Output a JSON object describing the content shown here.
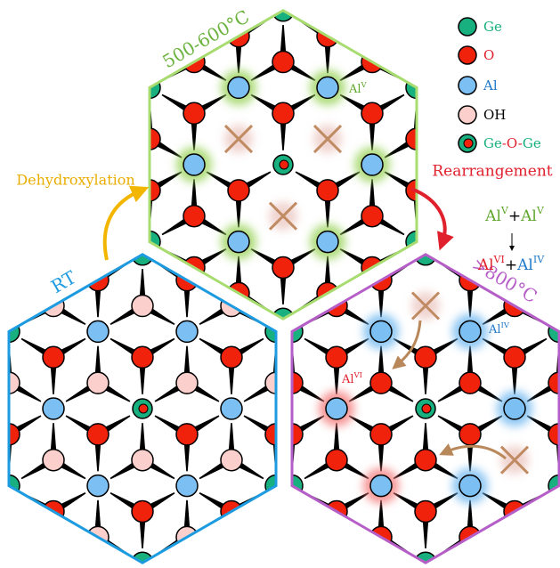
{
  "panels": {
    "rt": "RT",
    "mid": "500-600°C",
    "high": ">800°C"
  },
  "steps": {
    "dehydroxylation": "Dehydroxylation",
    "rearrangement": "Rearrangement"
  },
  "legend": {
    "ge": "Ge",
    "o": "O",
    "al": "Al",
    "oh": "OH",
    "ge_o_ge": [
      "Ge",
      "-O-",
      "Ge"
    ]
  },
  "reaction": {
    "reactants": [
      {
        "el": "Al",
        "ox": "V"
      },
      "+",
      {
        "el": "Al",
        "ox": "V"
      }
    ],
    "products": [
      {
        "el": "Al",
        "ox": "VI"
      },
      "+",
      {
        "el": "Al",
        "ox": "IV"
      }
    ]
  },
  "site_labels": {
    "al_v": {
      "el": "Al",
      "ox": "V"
    },
    "al_vi": {
      "el": "Al",
      "ox": "VI"
    },
    "al_iv": {
      "el": "Al",
      "ox": "IV"
    }
  }
}
